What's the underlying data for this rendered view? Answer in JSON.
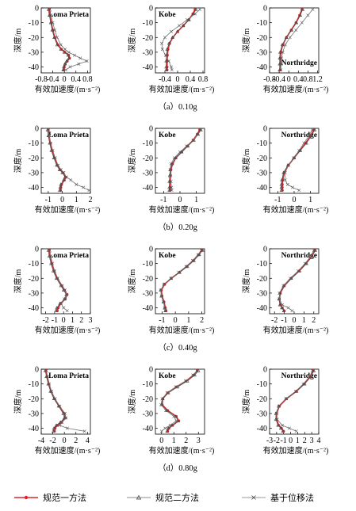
{
  "figure": {
    "y_axis_label": "深度/m",
    "x_axis_label": "有效加速度/(m·s⁻²)",
    "legend": [
      {
        "name": "规范一方法",
        "color": "#e0262a",
        "marker": "dot"
      },
      {
        "name": "规范二方法",
        "color": "#666666",
        "marker": "triangle"
      },
      {
        "name": "基于位移法",
        "color": "#777777",
        "marker": "cross"
      }
    ],
    "row_captions": [
      "（a）0.10g",
      "（b）0.20g",
      "（c）0.40g",
      "（d）0.80g"
    ]
  },
  "chart_data": [
    {
      "type": "line",
      "title": "Loma Prieta",
      "caption": "（a）0.10g",
      "xlabel": "有效加速度/(m·s⁻²)",
      "ylabel": "深度/m",
      "xlim": [
        -0.8,
        0.9
      ],
      "ylim": [
        -44,
        0
      ],
      "xticks": [
        "-0.8",
        "-0.4",
        "0",
        "0.4",
        "0.8"
      ],
      "yticks": [
        "0",
        "-10",
        "-20",
        "-30",
        "-40"
      ],
      "label_pos": "top-right",
      "y": [
        -1,
        -5,
        -10,
        -15,
        -20,
        -25,
        -28,
        -30,
        -32,
        -34,
        -36,
        -38,
        -40,
        -42
      ],
      "series": [
        {
          "name": "规范一方法",
          "values": [
            -0.52,
            -0.5,
            -0.45,
            -0.4,
            -0.33,
            -0.22,
            -0.1,
            0.02,
            0.15,
            0.18,
            0.1,
            0.03,
            0,
            -0.02
          ]
        },
        {
          "name": "规范二方法",
          "values": [
            -0.55,
            -0.52,
            -0.47,
            -0.42,
            -0.35,
            -0.25,
            -0.12,
            0,
            0.13,
            0.16,
            0.08,
            0.02,
            -0.02,
            -0.04
          ]
        },
        {
          "name": "基于位移法",
          "values": [
            -0.5,
            -0.46,
            -0.4,
            -0.33,
            -0.25,
            -0.12,
            0.02,
            0.15,
            0.35,
            0.55,
            0.78,
            0.5,
            0.2,
            0.05
          ]
        }
      ]
    },
    {
      "type": "line",
      "title": "Kobe",
      "caption": "（a）0.10g",
      "xlabel": "有效加速度/(m·s⁻²)",
      "ylabel": "深度/m",
      "xlim": [
        -0.7,
        0.85
      ],
      "ylim": [
        -44,
        0
      ],
      "xticks": [
        "-0.4",
        "0",
        "0.4",
        "0.8"
      ],
      "yticks": [
        "0",
        "-10",
        "-20",
        "-30",
        "-40"
      ],
      "label_pos": "top-left",
      "y": [
        -1,
        -4,
        -8,
        -12,
        -16,
        -20,
        -24,
        -28,
        -32,
        -36,
        -40,
        -42
      ],
      "series": [
        {
          "name": "规范一方法",
          "values": [
            0.55,
            0.48,
            0.35,
            0.18,
            0,
            -0.15,
            -0.25,
            -0.3,
            -0.32,
            -0.33,
            -0.33,
            -0.33
          ]
        },
        {
          "name": "规范二方法",
          "values": [
            0.58,
            0.5,
            0.36,
            0.18,
            0,
            -0.16,
            -0.27,
            -0.33,
            -0.35,
            -0.36,
            -0.36,
            -0.36
          ]
        },
        {
          "name": "基于位移法",
          "values": [
            0.7,
            0.55,
            0.3,
            0.05,
            -0.2,
            -0.4,
            -0.5,
            -0.48,
            -0.38,
            -0.28,
            -0.2,
            -0.18
          ]
        }
      ]
    },
    {
      "type": "line",
      "title": "Northridge",
      "caption": "（a）0.10g",
      "xlabel": "有效加速度/(m·s⁻²)",
      "ylabel": "深度/m",
      "xlim": [
        -0.8,
        1.25
      ],
      "ylim": [
        -44,
        0
      ],
      "xticks": [
        "-0.8",
        "-0.4",
        "0",
        "0.4",
        "0.8",
        "1.2"
      ],
      "yticks": [
        "0",
        "-10",
        "-20",
        "-30",
        "-40"
      ],
      "label_pos": "bottom-right",
      "y": [
        -1,
        -5,
        -10,
        -15,
        -20,
        -25,
        -30,
        -34,
        -38,
        -42
      ],
      "series": [
        {
          "name": "规范一方法",
          "values": [
            0.55,
            0.45,
            0.3,
            0.1,
            -0.1,
            -0.25,
            -0.33,
            -0.35,
            -0.35,
            -0.35
          ]
        },
        {
          "name": "规范二方法",
          "values": [
            0.58,
            0.48,
            0.32,
            0.12,
            -0.1,
            -0.27,
            -0.36,
            -0.38,
            -0.38,
            -0.38
          ]
        },
        {
          "name": "基于位移法",
          "values": [
            1.0,
            0.8,
            0.55,
            0.3,
            0.05,
            -0.15,
            -0.25,
            -0.3,
            -0.32,
            -0.33
          ]
        }
      ]
    },
    {
      "type": "line",
      "title": "Loma Prieta",
      "caption": "（b）0.20g",
      "xlabel": "有效加速度/(m·s⁻²)",
      "ylabel": "深度/m",
      "xlim": [
        -1.5,
        2
      ],
      "ylim": [
        -44,
        0
      ],
      "xticks": [
        "-1",
        "0",
        "1",
        "2"
      ],
      "yticks": [
        "0",
        "-10",
        "-20",
        "-30",
        "-40"
      ],
      "label_pos": "top-right",
      "y": [
        -1,
        -5,
        -10,
        -15,
        -20,
        -25,
        -28,
        -30,
        -33,
        -35,
        -38,
        -40,
        -42
      ],
      "series": [
        {
          "name": "规范一方法",
          "values": [
            -1,
            -0.95,
            -0.85,
            -0.72,
            -0.55,
            -0.35,
            -0.15,
            0.05,
            0.25,
            0.15,
            -0.05,
            -0.1,
            -0.12
          ]
        },
        {
          "name": "规范二方法",
          "values": [
            -1.05,
            -1,
            -0.9,
            -0.78,
            -0.6,
            -0.4,
            -0.2,
            0,
            0.2,
            0.1,
            -0.1,
            -0.15,
            -0.18
          ]
        },
        {
          "name": "基于位移法",
          "values": [
            -0.98,
            -0.92,
            -0.82,
            -0.68,
            -0.5,
            -0.3,
            -0.1,
            0.1,
            0.3,
            0.6,
            1.0,
            1.5,
            1.9
          ]
        }
      ]
    },
    {
      "type": "line",
      "title": "Kobe",
      "caption": "（b）0.20g",
      "xlabel": "有效加速度/(m·s⁻²)",
      "ylabel": "深度/m",
      "xlim": [
        -1.5,
        1.5
      ],
      "ylim": [
        -44,
        0
      ],
      "xticks": [
        "-1",
        "0",
        "1"
      ],
      "yticks": [
        "0",
        "-10",
        "-20",
        "-30",
        "-40"
      ],
      "label_pos": "top-left",
      "y": [
        -1,
        -4,
        -8,
        -12,
        -16,
        -20,
        -24,
        -28,
        -32,
        -36,
        -40,
        -42
      ],
      "series": [
        {
          "name": "规范一方法",
          "values": [
            1.2,
            1.05,
            0.8,
            0.45,
            0.1,
            -0.25,
            -0.45,
            -0.55,
            -0.58,
            -0.6,
            -0.6,
            -0.6
          ]
        },
        {
          "name": "规范二方法",
          "values": [
            1.25,
            1.1,
            0.85,
            0.48,
            0.1,
            -0.27,
            -0.48,
            -0.6,
            -0.63,
            -0.65,
            -0.65,
            -0.65
          ]
        },
        {
          "name": "基于位移法",
          "values": [
            1.3,
            1.1,
            0.8,
            0.4,
            0,
            -0.35,
            -0.55,
            -0.6,
            -0.58,
            -0.55,
            -0.52,
            -0.5
          ]
        }
      ]
    },
    {
      "type": "line",
      "title": "Northridge",
      "caption": "（b）0.20g",
      "xlabel": "有效加速度/(m·s⁻²)",
      "ylabel": "深度/m",
      "xlim": [
        -1.5,
        1.5
      ],
      "ylim": [
        -44,
        0
      ],
      "xticks": [
        "-1",
        "0",
        "1"
      ],
      "yticks": [
        "0",
        "-10",
        "-20",
        "-30",
        "-40"
      ],
      "label_pos": "top-right",
      "y": [
        -1,
        -5,
        -10,
        -15,
        -20,
        -25,
        -30,
        -35,
        -38,
        -40,
        -42
      ],
      "series": [
        {
          "name": "规范一方法",
          "values": [
            1.2,
            1.0,
            0.7,
            0.35,
            0,
            -0.35,
            -0.6,
            -0.7,
            -0.72,
            -0.72,
            -0.72
          ]
        },
        {
          "name": "规范二方法",
          "values": [
            1.25,
            1.05,
            0.75,
            0.38,
            0,
            -0.38,
            -0.65,
            -0.75,
            -0.78,
            -0.78,
            -0.78
          ]
        },
        {
          "name": "基于位移法",
          "values": [
            1.1,
            0.9,
            0.6,
            0.3,
            -0.05,
            -0.35,
            -0.55,
            -0.55,
            -0.4,
            -0.1,
            0.3
          ]
        }
      ]
    },
    {
      "type": "line",
      "title": "Loma Prieta",
      "caption": "（c）0.40g",
      "xlabel": "有效加速度/(m·s⁻²)",
      "ylabel": "深度/m",
      "xlim": [
        -2.5,
        3
      ],
      "ylim": [
        -44,
        0
      ],
      "xticks": [
        "-2",
        "-1",
        "0",
        "1",
        "2",
        "3"
      ],
      "yticks": [
        "0",
        "-10",
        "-20",
        "-30",
        "-40"
      ],
      "label_pos": "top-right",
      "y": [
        -1,
        -5,
        -10,
        -15,
        -20,
        -25,
        -28,
        -31,
        -34,
        -37,
        -40,
        -42
      ],
      "series": [
        {
          "name": "规范一方法",
          "values": [
            -1.6,
            -1.5,
            -1.3,
            -1.05,
            -0.7,
            -0.2,
            0.1,
            0.4,
            0.2,
            -0.3,
            -0.6,
            -0.7
          ]
        },
        {
          "name": "规范二方法",
          "values": [
            -1.7,
            -1.6,
            -1.4,
            -1.15,
            -0.8,
            -0.3,
            0,
            0.3,
            0.1,
            -0.4,
            -0.75,
            -0.85
          ]
        },
        {
          "name": "基于位移法",
          "values": [
            -1.55,
            -1.45,
            -1.25,
            -1.0,
            -0.65,
            -0.15,
            0.15,
            0.35,
            0.1,
            -0.3,
            0,
            0.4
          ]
        }
      ]
    },
    {
      "type": "line",
      "title": "Kobe",
      "caption": "（c）0.40g",
      "xlabel": "有效加速度/(m·s⁻²)",
      "ylabel": "深度/m",
      "xlim": [
        -1.5,
        2.2
      ],
      "ylim": [
        -44,
        0
      ],
      "xticks": [
        "-1",
        "0",
        "1",
        "2"
      ],
      "yticks": [
        "0",
        "-10",
        "-20",
        "-30",
        "-40"
      ],
      "label_pos": "top-left",
      "y": [
        -1,
        -4,
        -8,
        -12,
        -16,
        -20,
        -24,
        -28,
        -32,
        -36,
        -40,
        -42
      ],
      "series": [
        {
          "name": "规范一方法",
          "values": [
            2.0,
            1.75,
            1.35,
            0.85,
            0.3,
            -0.3,
            -0.8,
            -1.05,
            -1.0,
            -0.85,
            -0.75,
            -0.7
          ]
        },
        {
          "name": "规范二方法",
          "values": [
            2.05,
            1.8,
            1.4,
            0.9,
            0.32,
            -0.32,
            -0.85,
            -1.1,
            -1.05,
            -0.9,
            -0.8,
            -0.75
          ]
        },
        {
          "name": "基于位移法",
          "values": [
            1.95,
            1.7,
            1.3,
            0.8,
            0.25,
            -0.35,
            -0.85,
            -1.1,
            -1.05,
            -0.9,
            -0.8,
            -0.75
          ]
        }
      ]
    },
    {
      "type": "line",
      "title": "Northridge",
      "caption": "（c）0.40g",
      "xlabel": "有效加速度/(m·s⁻²)",
      "ylabel": "深度/m",
      "xlim": [
        -2.5,
        2.5
      ],
      "ylim": [
        -44,
        0
      ],
      "xticks": [
        "-2",
        "-1",
        "0",
        "1",
        "2"
      ],
      "yticks": [
        "0",
        "-10",
        "-20",
        "-30",
        "-40"
      ],
      "label_pos": "top-right",
      "y": [
        -1,
        -5,
        -10,
        -15,
        -20,
        -25,
        -30,
        -34,
        -38,
        -40,
        -42
      ],
      "series": [
        {
          "name": "规范一方法",
          "values": [
            2.1,
            1.8,
            1.2,
            0.5,
            -0.3,
            -1.0,
            -1.4,
            -1.5,
            -1.4,
            -1.2,
            -1.0
          ]
        },
        {
          "name": "规范二方法",
          "values": [
            2.15,
            1.85,
            1.25,
            0.55,
            -0.3,
            -1.05,
            -1.45,
            -1.55,
            -1.45,
            -1.25,
            -1.05
          ]
        },
        {
          "name": "基于位移法",
          "values": [
            2.0,
            1.7,
            1.1,
            0.4,
            -0.4,
            -1.1,
            -1.5,
            -1.5,
            -1.2,
            -0.6,
            -0.2
          ]
        }
      ]
    },
    {
      "type": "line",
      "title": "Loma Prieta",
      "caption": "（d）0.80g",
      "xlabel": "有效加速度/(m·s⁻²)",
      "ylabel": "深度/m",
      "xlim": [
        -4,
        4.5
      ],
      "ylim": [
        -44,
        0
      ],
      "xticks": [
        "-4",
        "-2",
        "0",
        "2",
        "4"
      ],
      "yticks": [
        "0",
        "-10",
        "-20",
        "-30",
        "-40"
      ],
      "label_pos": "top-right",
      "y": [
        -1,
        -5,
        -10,
        -15,
        -20,
        -25,
        -30,
        -33,
        -36,
        -38,
        -40,
        -42
      ],
      "series": [
        {
          "name": "规范一方法",
          "values": [
            -3.2,
            -3.0,
            -2.7,
            -2.3,
            -1.7,
            -0.9,
            0,
            0.2,
            -0.5,
            -1.2,
            -1.6,
            -1.7
          ]
        },
        {
          "name": "规范二方法",
          "values": [
            -3.3,
            -3.1,
            -2.8,
            -2.4,
            -1.8,
            -1.0,
            -0.2,
            0,
            -0.7,
            -1.4,
            -1.8,
            -1.9
          ]
        },
        {
          "name": "基于位移法",
          "values": [
            -3.1,
            -2.9,
            -2.6,
            -2.2,
            -1.6,
            -0.8,
            0.1,
            0.3,
            -0.4,
            -0.8,
            0.5,
            3.5
          ]
        }
      ]
    },
    {
      "type": "line",
      "title": "Kobe",
      "caption": "（d）0.80g",
      "xlabel": "有效加速度/(m·s⁻²)",
      "ylabel": "深度/m",
      "xlim": [
        -0.5,
        3.5
      ],
      "ylim": [
        -44,
        0
      ],
      "xticks": [
        "0",
        "1",
        "2",
        "3"
      ],
      "yticks": [
        "0",
        "-10",
        "-20",
        "-30",
        "-40"
      ],
      "label_pos": "top-left",
      "y": [
        -1,
        -4,
        -8,
        -12,
        -16,
        -20,
        -24,
        -28,
        -32,
        -35,
        -38,
        -40,
        -42
      ],
      "series": [
        {
          "name": "规范一方法",
          "values": [
            2.9,
            2.6,
            2.0,
            1.2,
            0.5,
            0.1,
            0.05,
            0.5,
            1.2,
            1.4,
            0.9,
            0.6,
            0.5
          ]
        },
        {
          "name": "规范二方法",
          "values": [
            3.0,
            2.7,
            2.1,
            1.3,
            0.55,
            0.1,
            0,
            0.45,
            1.15,
            1.35,
            0.85,
            0.55,
            0.45
          ]
        },
        {
          "name": "基于位移法",
          "values": [
            2.9,
            2.55,
            1.95,
            1.15,
            0.45,
            0.05,
            -0.05,
            0.35,
            1.0,
            1.2,
            0.7,
            0.3,
            0
          ]
        }
      ]
    },
    {
      "type": "line",
      "title": "Northridge",
      "caption": "（d）0.80g",
      "xlabel": "有效加速度/(m·s⁻²)",
      "ylabel": "深度/m",
      "xlim": [
        -3,
        4
      ],
      "ylim": [
        -44,
        0
      ],
      "xticks": [
        "-3",
        "-2",
        "-1",
        "0",
        "1",
        "2",
        "3",
        "4"
      ],
      "yticks": [
        "0",
        "-10",
        "-20",
        "-30",
        "-40"
      ],
      "label_pos": "top-right",
      "y": [
        -1,
        -5,
        -10,
        -15,
        -20,
        -25,
        -30,
        -34,
        -38,
        -40,
        -42
      ],
      "series": [
        {
          "name": "规范一方法",
          "values": [
            3.2,
            2.8,
            1.9,
            0.8,
            -0.6,
            -1.6,
            -2.0,
            -2.0,
            -1.7,
            -1.3,
            -1.0
          ]
        },
        {
          "name": "规范二方法",
          "values": [
            3.3,
            2.9,
            2.0,
            0.85,
            -0.65,
            -1.7,
            -2.1,
            -2.1,
            -1.8,
            -1.4,
            -1.1
          ]
        },
        {
          "name": "基于位移法",
          "values": [
            3.1,
            2.7,
            1.8,
            0.7,
            -0.7,
            -1.7,
            -2.0,
            -1.9,
            -1.2,
            -0.2,
            0.8
          ]
        }
      ]
    }
  ]
}
